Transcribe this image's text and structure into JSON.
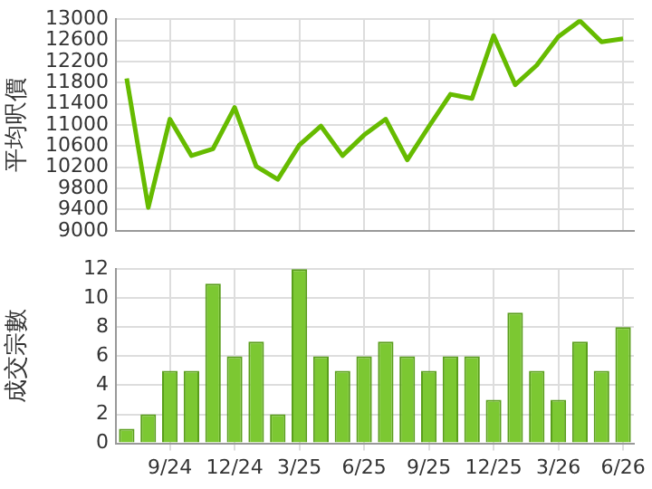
{
  "chart_data": [
    {
      "type": "line",
      "ylabel": "平均呎價",
      "categories": [
        null,
        null,
        null,
        null,
        null,
        null,
        null,
        null,
        null,
        null,
        null,
        null,
        null,
        null,
        null,
        null,
        null,
        null,
        null,
        null,
        null,
        null,
        null,
        null
      ],
      "series": [
        {
          "color": "#66bb00",
          "values": [
            11880,
            9440,
            11110,
            10420,
            10550,
            11330,
            10220,
            9970,
            10620,
            10980,
            10420,
            10810,
            11110,
            10340,
            10970,
            11580,
            11500,
            12690,
            11760,
            12130,
            12670,
            12970,
            12570,
            12630
          ]
        }
      ],
      "ylim": [
        9000,
        13000
      ],
      "yticks": [
        9000,
        9400,
        9800,
        10200,
        10600,
        11000,
        11400,
        11800,
        12200,
        12600,
        13000
      ],
      "grid": true,
      "legend": false,
      "tick_labels": "y",
      "marker": "none",
      "line_style": "solid"
    },
    {
      "type": "bar",
      "ylabel": "成交宗數",
      "categories": [
        null,
        null,
        "9/24",
        null,
        null,
        "12/24",
        null,
        null,
        "3/25",
        null,
        null,
        "6/25",
        null,
        null,
        "9/25",
        null,
        null,
        "12/25",
        null,
        null,
        "3/26",
        null,
        null,
        "6/26"
      ],
      "series": [
        {
          "color": "#7cc832",
          "values": [
            1,
            2,
            5,
            5,
            11,
            6,
            7,
            2,
            12,
            6,
            5,
            6,
            7,
            6,
            5,
            6,
            6,
            3,
            9,
            5,
            3,
            7,
            5,
            8
          ]
        }
      ],
      "ylim": [
        0,
        12
      ],
      "yticks": [
        0,
        2,
        4,
        6,
        8,
        10,
        12
      ],
      "grid": true,
      "legend": false
    }
  ]
}
